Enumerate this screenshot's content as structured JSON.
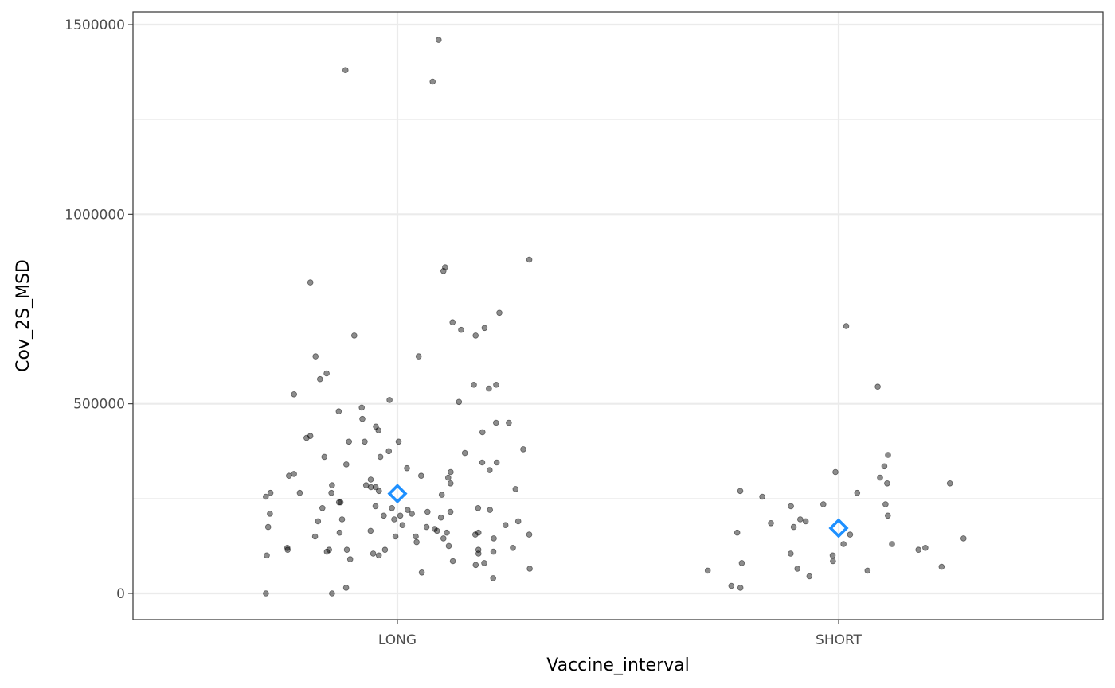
{
  "chart_data": {
    "type": "scatter",
    "subtype": "jitter strip plot with mean markers",
    "xlabel": "Vaccine_interval",
    "ylabel": "Cov_2S_MSD",
    "categories": [
      "LONG",
      "SHORT"
    ],
    "ylim": [
      -70000,
      1530000
    ],
    "yticks": [
      0,
      500000,
      1000000,
      1500000
    ],
    "ytick_labels": [
      "0",
      "500000",
      "1000000",
      "1500000"
    ],
    "grid": true,
    "legend": "none",
    "colors": {
      "points": "#000000",
      "mean_marker": "#1E90FF",
      "grid": "#ebebeb",
      "panel_border": "#333333"
    },
    "series": [
      {
        "category": "LONG",
        "values": [
          1460000,
          1380000,
          1350000,
          880000,
          860000,
          850000,
          820000,
          740000,
          715000,
          700000,
          695000,
          680000,
          680000,
          625000,
          625000,
          580000,
          565000,
          550000,
          550000,
          540000,
          525000,
          510000,
          505000,
          490000,
          480000,
          460000,
          450000,
          450000,
          440000,
          430000,
          425000,
          415000,
          410000,
          400000,
          400000,
          400000,
          380000,
          375000,
          370000,
          360000,
          360000,
          345000,
          345000,
          340000,
          330000,
          325000,
          320000,
          315000,
          310000,
          310000,
          305000,
          300000,
          290000,
          285000,
          285000,
          280000,
          280000,
          275000,
          270000,
          265000,
          265000,
          265000,
          260000,
          255000,
          240000,
          240000,
          230000,
          225000,
          225000,
          225000,
          220000,
          220000,
          215000,
          215000,
          210000,
          210000,
          205000,
          205000,
          200000,
          195000,
          195000,
          190000,
          190000,
          180000,
          180000,
          175000,
          175000,
          170000,
          165000,
          165000,
          160000,
          160000,
          160000,
          155000,
          155000,
          150000,
          150000,
          150000,
          145000,
          145000,
          135000,
          125000,
          120000,
          120000,
          115000,
          115000,
          115000,
          115000,
          115000,
          110000,
          110000,
          105000,
          105000,
          100000,
          100000,
          90000,
          85000,
          80000,
          75000,
          65000,
          55000,
          40000,
          15000,
          0,
          0
        ]
      },
      {
        "category": "SHORT",
        "values": [
          705000,
          545000,
          365000,
          335000,
          320000,
          305000,
          290000,
          290000,
          270000,
          265000,
          255000,
          235000,
          235000,
          230000,
          205000,
          195000,
          190000,
          185000,
          175000,
          160000,
          155000,
          145000,
          130000,
          130000,
          120000,
          115000,
          105000,
          100000,
          85000,
          80000,
          70000,
          65000,
          60000,
          60000,
          45000,
          20000,
          15000
        ]
      }
    ],
    "means": [
      {
        "category": "LONG",
        "value": 263000
      },
      {
        "category": "SHORT",
        "value": 172000
      }
    ]
  }
}
